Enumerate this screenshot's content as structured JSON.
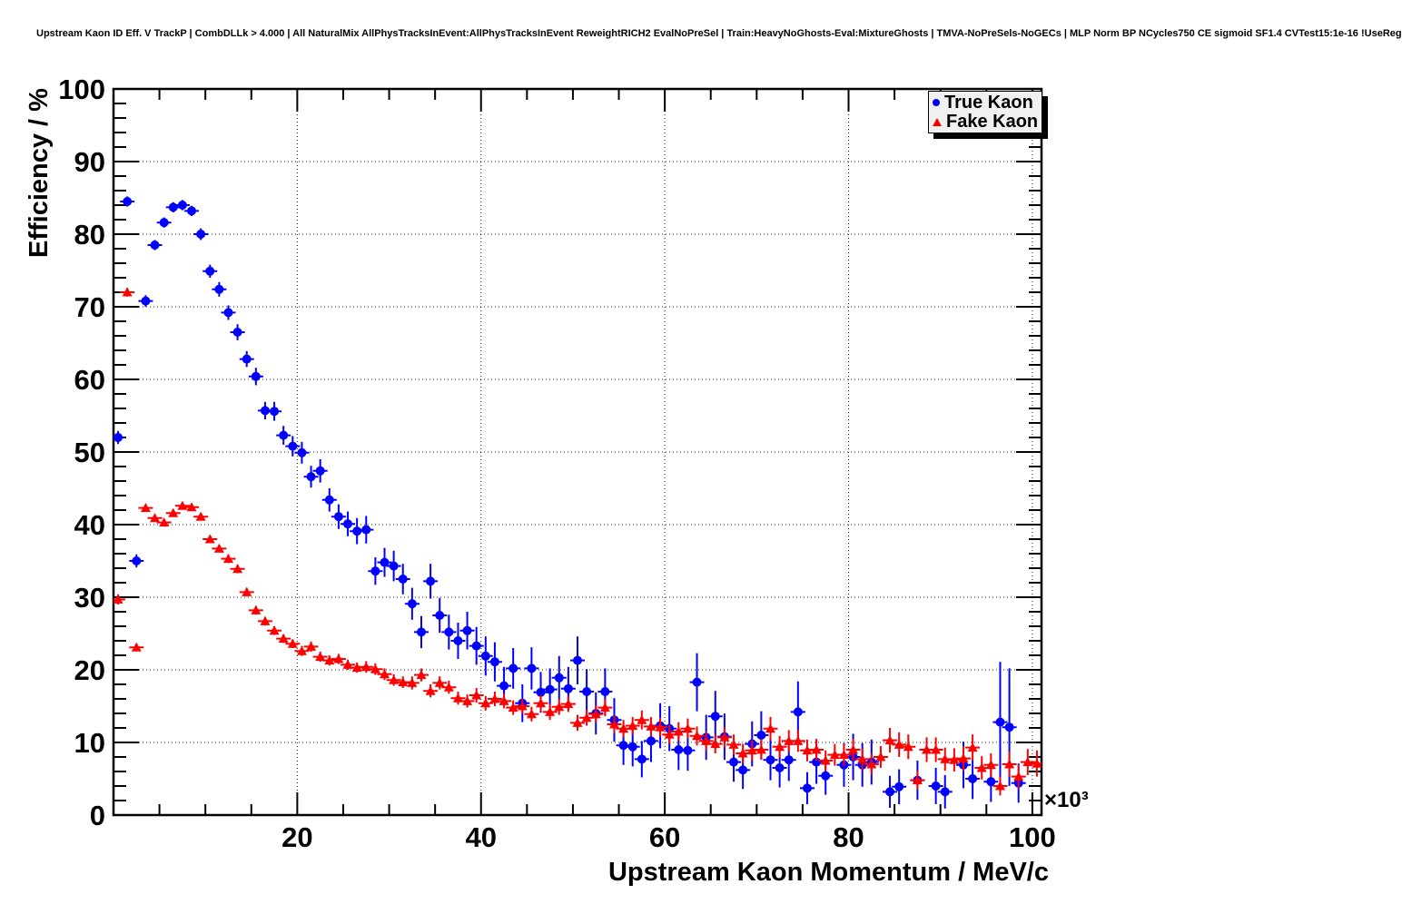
{
  "header": {
    "title": "Upstream Kaon ID Eff. V TrackP | CombDLLk > 4.000 | All NaturalMix AllPhysTracksInEvent:AllPhysTracksInEvent ReweightRICH2 EvalNoPreSel | Train:HeavyNoGhosts-Eval:MixtureGhosts | TMVA-NoPreSels-NoGECs | MLP Norm BP NCycles750 CE sigmoid SF1.4 CVTest15:1e-16 !UseReg"
  },
  "legend": {
    "position": "top-right",
    "background": "#f0f0f0",
    "entries": [
      {
        "label": "True Kaon",
        "marker": "circle",
        "color": "#0000ff"
      },
      {
        "label": "Fake Kaon",
        "marker": "triangle-up",
        "color": "#ff0000"
      }
    ]
  },
  "chart_data": {
    "type": "scatter",
    "title": "Upstream Kaon ID Eff. V TrackP | CombDLLk > 4.000 | All NaturalMix AllPhysTracksInEvent:AllPhysTracksInEvent ReweightRICH2 EvalNoPreSel | Train:HeavyNoGhosts-Eval:MixtureGhosts | TMVA-NoPreSels-NoGECs | MLP Norm BP NCycles750 CE sigmoid SF1.4 CVTest15:1e-16 !UseReg",
    "xlabel": "Upstream Kaon Momentum / MeV/c",
    "ylabel": "Efficiency / %",
    "x_scale_label": "×10³",
    "xlim": [
      0,
      101000
    ],
    "ylim": [
      0,
      100
    ],
    "x_major_ticks": [
      20000,
      40000,
      60000,
      80000,
      100000
    ],
    "x_tick_labels": [
      "20",
      "40",
      "60",
      "80",
      "100"
    ],
    "x_minor_step": 5000,
    "y_major_ticks": [
      0,
      10,
      20,
      30,
      40,
      50,
      60,
      70,
      80,
      90,
      100
    ],
    "y_minor_step": 2,
    "grid": {
      "style": "dotted",
      "x_lines": [
        20000,
        40000,
        60000,
        80000,
        100000
      ],
      "y_lines": [
        10,
        20,
        30,
        40,
        50,
        60,
        70,
        80,
        90
      ]
    },
    "point_format": [
      "momentum_MeV_per_c",
      "efficiency_percent",
      "error_percent"
    ],
    "series": [
      {
        "name": "True Kaon",
        "color": "#0000ff",
        "marker": "circle",
        "points": [
          [
            500,
            52.0,
            0.9
          ],
          [
            1500,
            84.5,
            0.7
          ],
          [
            2500,
            35.0,
            0.9
          ],
          [
            3500,
            70.8,
            0.8
          ],
          [
            4500,
            78.5,
            0.7
          ],
          [
            5500,
            81.6,
            0.7
          ],
          [
            6500,
            83.7,
            0.7
          ],
          [
            7500,
            84.0,
            0.7
          ],
          [
            8500,
            83.2,
            0.7
          ],
          [
            9500,
            80.0,
            0.8
          ],
          [
            10500,
            74.9,
            0.9
          ],
          [
            11500,
            72.4,
            1.0
          ],
          [
            12500,
            69.2,
            1.0
          ],
          [
            13500,
            66.5,
            1.1
          ],
          [
            14500,
            62.8,
            1.1
          ],
          [
            15500,
            60.4,
            1.2
          ],
          [
            16500,
            55.7,
            1.2
          ],
          [
            17500,
            55.6,
            1.3
          ],
          [
            18500,
            52.3,
            1.3
          ],
          [
            19500,
            50.8,
            1.4
          ],
          [
            20500,
            49.9,
            1.5
          ],
          [
            21500,
            46.6,
            1.5
          ],
          [
            22500,
            47.4,
            1.6
          ],
          [
            23500,
            43.4,
            1.6
          ],
          [
            24500,
            41.1,
            1.7
          ],
          [
            25500,
            40.1,
            1.7
          ],
          [
            26500,
            39.1,
            1.8
          ],
          [
            27500,
            39.3,
            1.9
          ],
          [
            28500,
            33.6,
            1.9
          ],
          [
            29500,
            34.8,
            2.0
          ],
          [
            30500,
            34.3,
            2.1
          ],
          [
            31500,
            32.5,
            2.1
          ],
          [
            32500,
            29.1,
            2.2
          ],
          [
            33500,
            25.2,
            2.2
          ],
          [
            34500,
            32.2,
            2.4
          ],
          [
            35500,
            27.5,
            2.4
          ],
          [
            36500,
            25.2,
            2.4
          ],
          [
            37500,
            24.0,
            2.5
          ],
          [
            38500,
            25.4,
            2.6
          ],
          [
            39500,
            23.3,
            2.6
          ],
          [
            40500,
            21.9,
            2.7
          ],
          [
            41500,
            21.1,
            2.7
          ],
          [
            42500,
            17.8,
            2.6
          ],
          [
            43500,
            20.2,
            2.8
          ],
          [
            44500,
            15.4,
            2.6
          ],
          [
            45500,
            20.2,
            2.9
          ],
          [
            46500,
            16.9,
            2.8
          ],
          [
            47500,
            17.3,
            2.9
          ],
          [
            48500,
            18.9,
            3.0
          ],
          [
            49500,
            17.4,
            3.0
          ],
          [
            50500,
            21.3,
            3.3
          ],
          [
            51500,
            17.0,
            3.1
          ],
          [
            52500,
            14.0,
            2.9
          ],
          [
            53500,
            17.0,
            3.2
          ],
          [
            54500,
            13.1,
            3.0
          ],
          [
            55500,
            9.6,
            2.7
          ],
          [
            56500,
            9.4,
            2.7
          ],
          [
            57500,
            7.7,
            2.5
          ],
          [
            58500,
            10.2,
            2.9
          ],
          [
            59500,
            12.3,
            3.1
          ],
          [
            60500,
            11.9,
            3.1
          ],
          [
            61500,
            9.0,
            2.8
          ],
          [
            62500,
            8.9,
            2.8
          ],
          [
            63500,
            18.3,
            4.0
          ],
          [
            64500,
            10.7,
            3.1
          ],
          [
            65500,
            13.6,
            3.5
          ],
          [
            66500,
            10.8,
            3.2
          ],
          [
            67500,
            7.3,
            2.7
          ],
          [
            68500,
            6.2,
            2.6
          ],
          [
            69500,
            9.8,
            3.1
          ],
          [
            70500,
            11.0,
            3.3
          ],
          [
            71500,
            7.6,
            2.8
          ],
          [
            72500,
            6.5,
            2.7
          ],
          [
            73500,
            7.6,
            2.9
          ],
          [
            74500,
            14.2,
            4.2
          ],
          [
            75500,
            3.7,
            2.2
          ],
          [
            76500,
            7.3,
            3.0
          ],
          [
            77500,
            5.4,
            2.6
          ],
          [
            79500,
            6.9,
            3.0
          ],
          [
            80500,
            8.0,
            3.2
          ],
          [
            81500,
            6.9,
            3.0
          ],
          [
            82500,
            7.3,
            3.1
          ],
          [
            84500,
            3.2,
            2.2
          ],
          [
            85500,
            3.9,
            2.4
          ],
          [
            87500,
            4.8,
            2.7
          ],
          [
            89500,
            4.0,
            2.5
          ],
          [
            90500,
            3.2,
            2.3
          ],
          [
            92500,
            6.9,
            3.2
          ],
          [
            93500,
            5.0,
            2.8
          ],
          [
            95500,
            4.6,
            2.8
          ],
          [
            96500,
            12.8,
            8.3
          ],
          [
            97500,
            12.1,
            8.1
          ],
          [
            98500,
            4.4,
            2.7
          ]
        ]
      },
      {
        "name": "Fake Kaon",
        "color": "#ff0000",
        "marker": "triangle-up",
        "points": [
          [
            500,
            29.7,
            0.7
          ],
          [
            1500,
            72.0,
            0.6
          ],
          [
            2500,
            23.1,
            0.5
          ],
          [
            3500,
            42.3,
            0.5
          ],
          [
            4500,
            40.9,
            0.5
          ],
          [
            5500,
            40.3,
            0.5
          ],
          [
            6500,
            41.6,
            0.5
          ],
          [
            7500,
            42.6,
            0.5
          ],
          [
            8500,
            42.4,
            0.5
          ],
          [
            9500,
            41.1,
            0.5
          ],
          [
            10500,
            38.0,
            0.5
          ],
          [
            11500,
            36.7,
            0.5
          ],
          [
            12500,
            35.3,
            0.6
          ],
          [
            13500,
            33.9,
            0.6
          ],
          [
            14500,
            30.7,
            0.6
          ],
          [
            15500,
            28.2,
            0.6
          ],
          [
            16500,
            26.7,
            0.6
          ],
          [
            17500,
            25.4,
            0.6
          ],
          [
            18500,
            24.3,
            0.6
          ],
          [
            19500,
            23.6,
            0.6
          ],
          [
            20500,
            22.6,
            0.7
          ],
          [
            21500,
            23.2,
            0.7
          ],
          [
            22500,
            21.8,
            0.7
          ],
          [
            23500,
            21.3,
            0.7
          ],
          [
            24500,
            21.5,
            0.7
          ],
          [
            25500,
            20.7,
            0.7
          ],
          [
            26500,
            20.3,
            0.7
          ],
          [
            27500,
            20.4,
            0.8
          ],
          [
            28500,
            20.1,
            0.8
          ],
          [
            29500,
            19.4,
            0.8
          ],
          [
            30500,
            18.6,
            0.8
          ],
          [
            31500,
            18.3,
            0.8
          ],
          [
            32500,
            18.2,
            0.9
          ],
          [
            33500,
            19.3,
            0.9
          ],
          [
            34500,
            17.1,
            0.9
          ],
          [
            35500,
            18.2,
            0.9
          ],
          [
            36500,
            17.6,
            0.9
          ],
          [
            37500,
            16.1,
            0.9
          ],
          [
            38500,
            15.7,
            0.9
          ],
          [
            39500,
            16.5,
            1.0
          ],
          [
            40500,
            15.4,
            1.0
          ],
          [
            41500,
            16.0,
            1.0
          ],
          [
            42500,
            15.7,
            1.0
          ],
          [
            43500,
            14.8,
            1.0
          ],
          [
            44500,
            15.0,
            1.0
          ],
          [
            45500,
            13.9,
            1.0
          ],
          [
            46500,
            15.4,
            1.1
          ],
          [
            47500,
            14.2,
            1.1
          ],
          [
            48500,
            14.9,
            1.1
          ],
          [
            49500,
            15.3,
            1.1
          ],
          [
            50500,
            12.7,
            1.1
          ],
          [
            51500,
            13.4,
            1.1
          ],
          [
            52500,
            13.9,
            1.2
          ],
          [
            53500,
            14.8,
            1.2
          ],
          [
            54500,
            12.5,
            1.2
          ],
          [
            55500,
            11.9,
            1.2
          ],
          [
            56500,
            12.3,
            1.2
          ],
          [
            57500,
            13.1,
            1.3
          ],
          [
            58500,
            12.2,
            1.3
          ],
          [
            59500,
            12.1,
            1.3
          ],
          [
            60500,
            11.1,
            1.3
          ],
          [
            61500,
            11.5,
            1.3
          ],
          [
            62500,
            11.9,
            1.4
          ],
          [
            63500,
            10.9,
            1.3
          ],
          [
            64500,
            10.2,
            1.3
          ],
          [
            65500,
            9.8,
            1.3
          ],
          [
            66500,
            10.7,
            1.4
          ],
          [
            67500,
            9.7,
            1.4
          ],
          [
            68500,
            8.5,
            1.3
          ],
          [
            69500,
            8.9,
            1.4
          ],
          [
            70500,
            9.0,
            1.4
          ],
          [
            71500,
            11.9,
            1.6
          ],
          [
            72500,
            9.4,
            1.5
          ],
          [
            73500,
            10.2,
            1.5
          ],
          [
            74500,
            10.2,
            1.5
          ],
          [
            75500,
            8.9,
            1.5
          ],
          [
            76500,
            9.0,
            1.5
          ],
          [
            77500,
            7.5,
            1.4
          ],
          [
            78500,
            8.3,
            1.5
          ],
          [
            79500,
            8.3,
            1.5
          ],
          [
            80500,
            9.0,
            1.5
          ],
          [
            81500,
            7.7,
            1.5
          ],
          [
            82500,
            7.0,
            1.4
          ],
          [
            83500,
            8.0,
            1.5
          ],
          [
            84500,
            10.3,
            1.7
          ],
          [
            85500,
            9.7,
            1.7
          ],
          [
            86500,
            9.4,
            1.7
          ],
          [
            87500,
            4.8,
            1.3
          ],
          [
            88500,
            9.0,
            1.7
          ],
          [
            89500,
            9.0,
            1.7
          ],
          [
            90500,
            7.7,
            1.6
          ],
          [
            91500,
            7.6,
            1.6
          ],
          [
            92500,
            7.8,
            1.7
          ],
          [
            93500,
            9.3,
            1.8
          ],
          [
            94500,
            6.5,
            1.6
          ],
          [
            95500,
            6.9,
            1.6
          ],
          [
            96500,
            4.0,
            1.3
          ],
          [
            97500,
            7.0,
            1.7
          ],
          [
            98500,
            5.3,
            1.6
          ],
          [
            99500,
            7.3,
            1.8
          ],
          [
            100500,
            7.1,
            1.8
          ]
        ]
      }
    ]
  }
}
